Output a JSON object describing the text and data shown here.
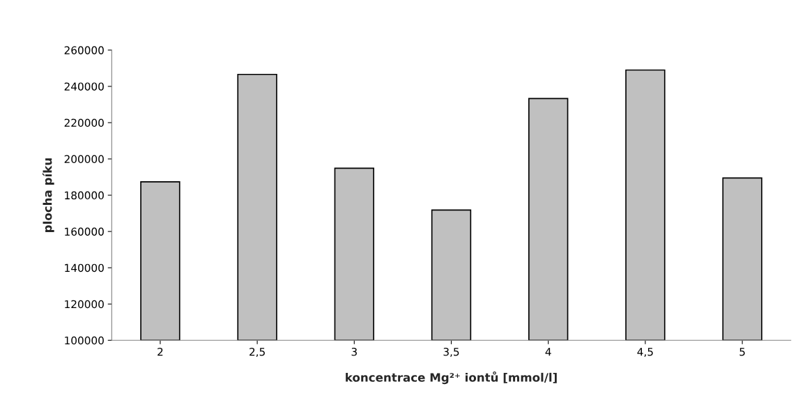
{
  "chart_data": {
    "type": "bar",
    "xlabel": "koncentrace Mg²⁺ iontů [mmol/l]",
    "ylabel": "plocha píku",
    "categories": [
      "2",
      "2,5",
      "3",
      "3,5",
      "4",
      "4,5",
      "5"
    ],
    "values": [
      187400,
      246600,
      194900,
      171800,
      233300,
      249000,
      189500
    ],
    "color": "#c0c0c0",
    "ylim": [
      100000,
      260000
    ],
    "yticks": [
      100000,
      120000,
      140000,
      160000,
      180000,
      200000,
      220000,
      240000,
      260000
    ],
    "grid": false,
    "legend": false
  }
}
